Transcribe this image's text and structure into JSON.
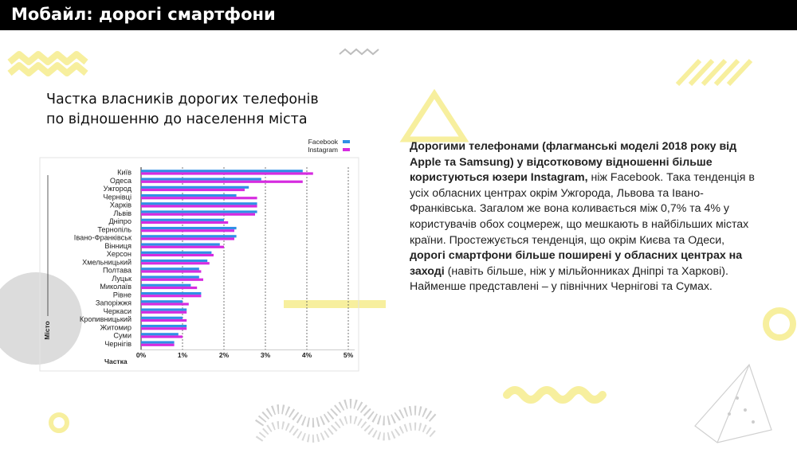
{
  "header": {
    "title": "Мобайл: дорогі смартфони"
  },
  "colors": {
    "facebook": "#2f8fe6",
    "instagram": "#d62be0",
    "accent_yellow": "#f7ef9e",
    "header_bg": "#000000"
  },
  "chart_title": {
    "line1": "Частка власників дорогих телефонів",
    "line2": "по відношенню до населення міста"
  },
  "chart_data": {
    "type": "bar",
    "orientation": "horizontal",
    "categories": [
      "Київ",
      "Одеса",
      "Ужгород",
      "Чернівці",
      "Харків",
      "Львів",
      "Дніпро",
      "Тернопіль",
      "Івано-Франківськ",
      "Вінниця",
      "Херсон",
      "Хмельницький",
      "Полтава",
      "Луцьк",
      "Миколаїв",
      "Рівне",
      "Запоріжжя",
      "Черкаси",
      "Кропивницький",
      "Житомир",
      "Суми",
      "Чернігів"
    ],
    "series": [
      {
        "name": "Facebook",
        "values": [
          3.9,
          2.9,
          2.6,
          2.3,
          2.8,
          2.8,
          2.0,
          2.3,
          2.3,
          1.9,
          1.7,
          1.6,
          1.4,
          1.4,
          1.2,
          1.45,
          1.0,
          1.1,
          1.0,
          1.1,
          0.9,
          0.8
        ]
      },
      {
        "name": "Instagram",
        "values": [
          4.15,
          3.9,
          2.5,
          2.8,
          2.8,
          2.75,
          2.1,
          2.25,
          2.25,
          2.0,
          1.75,
          1.65,
          1.45,
          1.5,
          1.35,
          1.45,
          1.15,
          1.1,
          1.1,
          1.1,
          1.0,
          0.8
        ]
      }
    ],
    "xticks": [
      "0%",
      "1%",
      "2%",
      "3%",
      "4%",
      "5%"
    ],
    "xlim": [
      0,
      5
    ],
    "xlabel": "Частка",
    "ylabel": "Місто",
    "legend": "top-right",
    "grid": "vertical dashed"
  },
  "description": {
    "p1_bold": "Дорогими телефонами (флагманські моделі 2018 року від Apple та Samsung) у відсотковому відношенні більше користуються юзери Instagram,",
    "p1_rest": " ніж Facebook. Така тенденція в усіх обласних центрах окрім Ужгорода, Львова та Івано-Франківська. Загалом же вона коливається між 0,7% та 4% у користувачів обох соцмереж, що мешкають в найбільших містах країни. Простежується тенденція, що окрім Києва та Одеси,",
    "p2_bold": "дорогі смартфони більше поширені у обласних центрах на заході",
    "p2_rest": " (навіть більше, ніж у мільйонниках Дніпрі та Харкові). Найменше представлені – у північних Чернігові та Сумах."
  }
}
